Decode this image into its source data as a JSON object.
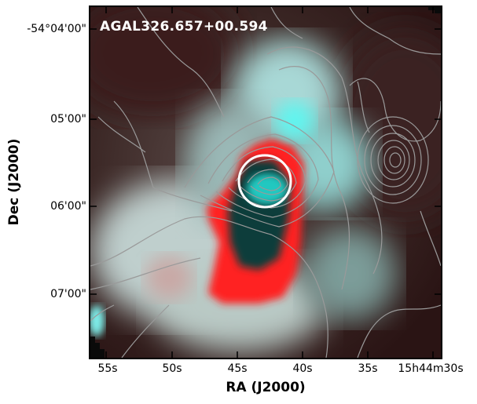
{
  "image": {
    "source_label": "AGAL326.657+00.594",
    "colors": {
      "cyan_channel": "#3ff0e8",
      "red_channel": "#ff2020",
      "contour": "#9a9a9a",
      "marker": "#ffffff"
    }
  },
  "axes": {
    "xlabel": "RA (J2000)",
    "ylabel": "Dec (J2000)",
    "xticks": [
      "55s",
      "50s",
      "45s",
      "40s",
      "35s",
      "15h44m30s"
    ],
    "yticks": [
      "-54°04'00\"",
      "05'00\"",
      "06'00\"",
      "07'00\""
    ]
  }
}
